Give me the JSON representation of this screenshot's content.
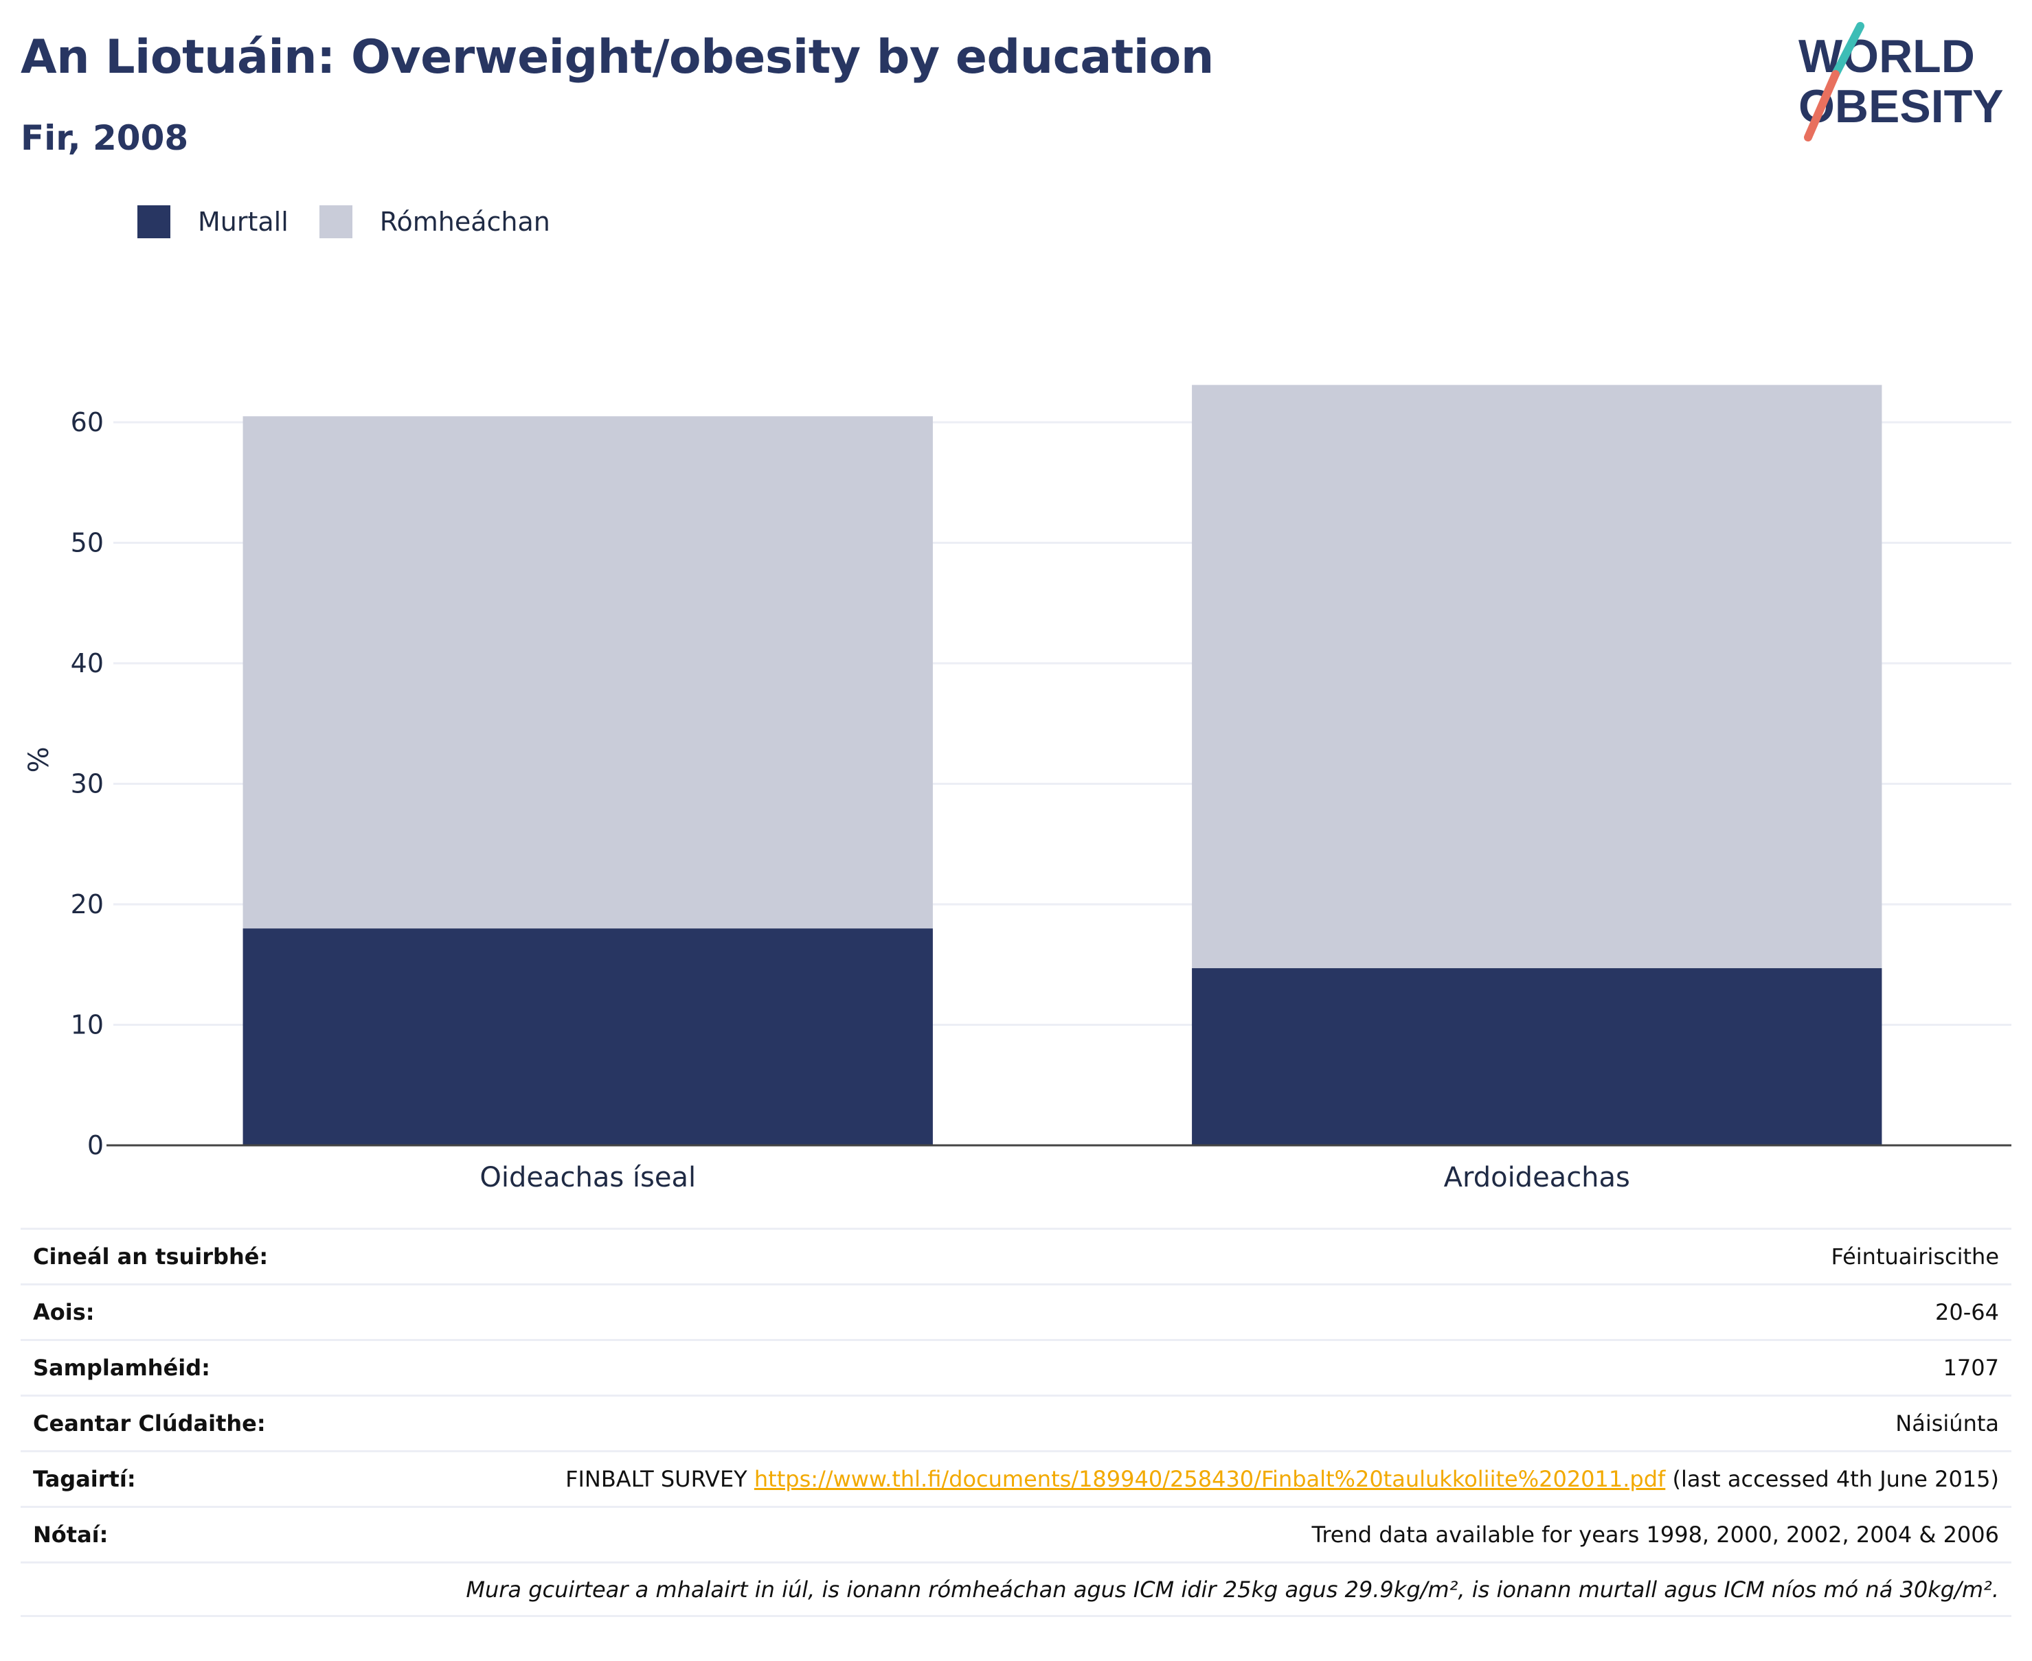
{
  "header": {
    "title": "An Liotuáin: Overweight/obesity by education",
    "subtitle": "Fir, 2008"
  },
  "logo": {
    "line1": "WORLD",
    "line2": "OBESITY",
    "colors": {
      "text": "#283662",
      "slash_teal": "#3dbdb6",
      "slash_coral": "#e8705e"
    }
  },
  "colors": {
    "obese": "#283662",
    "overweight": "#c9ccd9",
    "grid": "#eceef5",
    "axis": "#444444"
  },
  "chart_data": {
    "type": "bar",
    "stacked": true,
    "categories": [
      "Oideachas íseal",
      "Ardoideachas"
    ],
    "series": [
      {
        "name": "Murtall",
        "values": [
          18.0,
          14.7
        ]
      },
      {
        "name": "Rómheáchan",
        "values": [
          42.5,
          48.4
        ]
      }
    ],
    "ylabel": "%",
    "ylim": [
      0,
      65
    ],
    "yticks": [
      0,
      10,
      20,
      30,
      40,
      50,
      60
    ],
    "grid": true,
    "legend": "top-left"
  },
  "info": {
    "rows": [
      {
        "label": "Cineál an tsuirbhé:",
        "value": "Féintuairiscithe"
      },
      {
        "label": "Aois:",
        "value": "20-64"
      },
      {
        "label": "Samplamhéid:",
        "value": "1707"
      },
      {
        "label": "Ceantar Clúdaithe:",
        "value": "Náisiúnta"
      },
      {
        "label": "Nótaí:",
        "value": "Trend data available for years 1998, 2000, 2002, 2004 & 2006"
      }
    ],
    "reference": {
      "label": "Tagairtí:",
      "prefix": "FINBALT SURVEY ",
      "link": "https://www.thl.fi/documents/189940/258430/Finbalt%20taulukkoliite%202011.pdf",
      "suffix": " (last accessed 4th June 2015)"
    },
    "footnote": "Mura gcuirtear a mhalairt in iúl, is ionann rómheáchan agus ICM idir 25kg agus 29.9kg/m², is ionann murtall agus ICM níos mó ná 30kg/m²."
  }
}
